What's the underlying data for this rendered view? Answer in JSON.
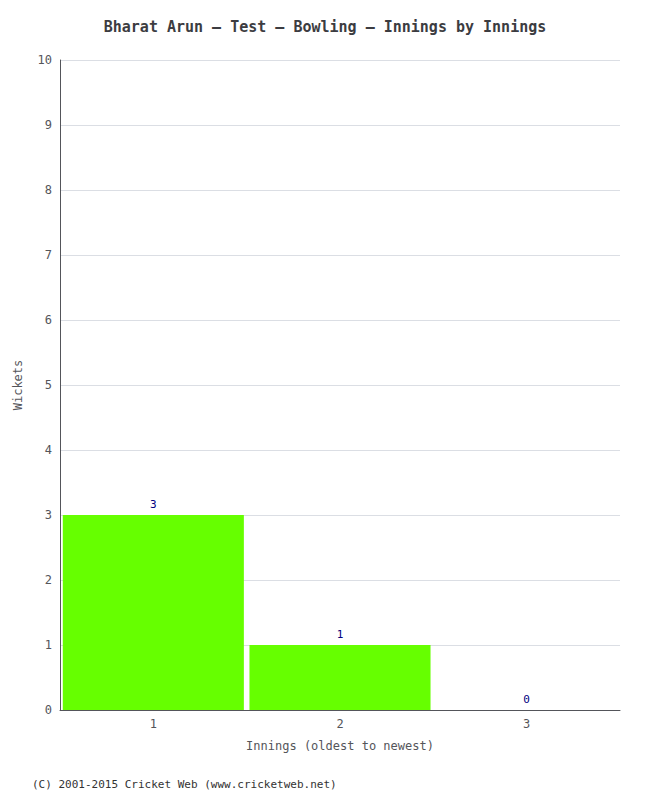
{
  "chart_data": {
    "type": "bar",
    "title": "Bharat Arun – Test – Bowling – Innings by Innings",
    "xlabel": "Innings (oldest to newest)",
    "ylabel": "Wickets",
    "categories": [
      1,
      2,
      3
    ],
    "values": [
      3,
      1,
      0
    ],
    "color": "#66ff00",
    "ylim": [
      0,
      10
    ],
    "yticks": [
      0,
      1,
      2,
      3,
      4,
      5,
      6,
      7,
      8,
      9,
      10
    ],
    "grid": true,
    "data_labels": true,
    "footer": "(C) 2001-2015 Cricket Web (www.cricketweb.net)"
  }
}
